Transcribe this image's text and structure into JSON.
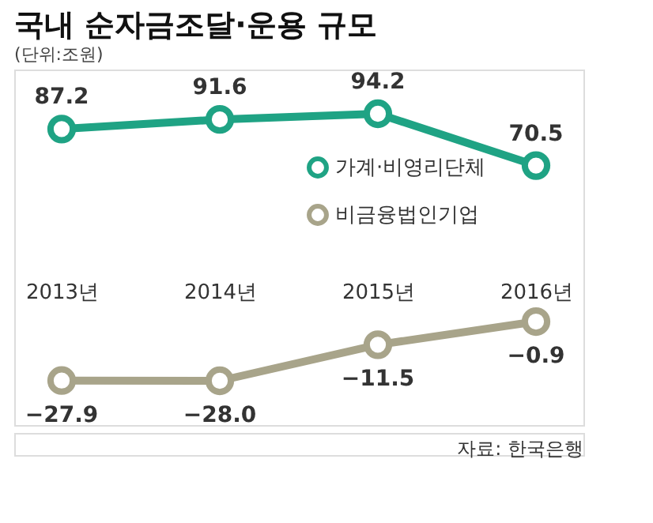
{
  "chart_data": {
    "type": "line",
    "title": "국내 순자금조달·운용 규모",
    "subtitle": "(단위:조원)",
    "categories": [
      "2013년",
      "2014년",
      "2015년",
      "2016년"
    ],
    "series": [
      {
        "name": "가계·비영리단체",
        "color": "#1fa384",
        "values": [
          87.2,
          91.6,
          94.2,
          70.5
        ],
        "value_labels": [
          "87.2",
          "91.6",
          "94.2",
          "70.5"
        ]
      },
      {
        "name": "비금융법인기업",
        "color": "#a8a48a",
        "values": [
          -27.9,
          -28.0,
          -11.5,
          -0.9
        ],
        "value_labels": [
          "−27.9",
          "−28.0",
          "−11.5",
          "−0.9"
        ]
      }
    ],
    "legend": "top right",
    "marker": "circle",
    "line_style": "solid",
    "tick_labels": "x",
    "grid": false,
    "annotations": [
      "자료: 한국은행"
    ]
  }
}
